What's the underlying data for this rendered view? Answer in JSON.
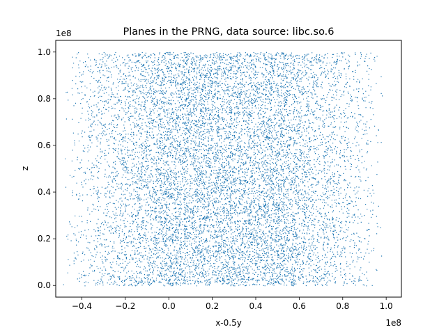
{
  "chart_data": {
    "type": "scatter",
    "title": "Planes in the PRNG, data source: libc.so.6",
    "xlabel": "x-0.5y",
    "ylabel": "z",
    "xlim": [
      -52000000,
      107000000
    ],
    "ylim": [
      -5000000,
      105000000
    ],
    "x_offset_label": "1e8",
    "y_offset_label": "1e8",
    "x_ticks": [
      {
        "value": -40000000,
        "label": "−0.4"
      },
      {
        "value": -20000000,
        "label": "−0.2"
      },
      {
        "value": 0,
        "label": "0.0"
      },
      {
        "value": 20000000,
        "label": "0.2"
      },
      {
        "value": 40000000,
        "label": "0.4"
      },
      {
        "value": 60000000,
        "label": "0.6"
      },
      {
        "value": 80000000,
        "label": "0.8"
      },
      {
        "value": 100000000,
        "label": "1.0"
      }
    ],
    "y_ticks": [
      {
        "value": 0,
        "label": "0.0"
      },
      {
        "value": 20000000,
        "label": "0.2"
      },
      {
        "value": 40000000,
        "label": "0.4"
      },
      {
        "value": 60000000,
        "label": "0.6"
      },
      {
        "value": 80000000,
        "label": "0.8"
      },
      {
        "value": 100000000,
        "label": "1.0"
      }
    ],
    "grid": false,
    "marker_color": "#1f77b4",
    "approx_point_count": 20000,
    "x_range_of_points": [
      -49000000,
      99000000
    ],
    "y_range_of_points": [
      0,
      100000000
    ]
  }
}
